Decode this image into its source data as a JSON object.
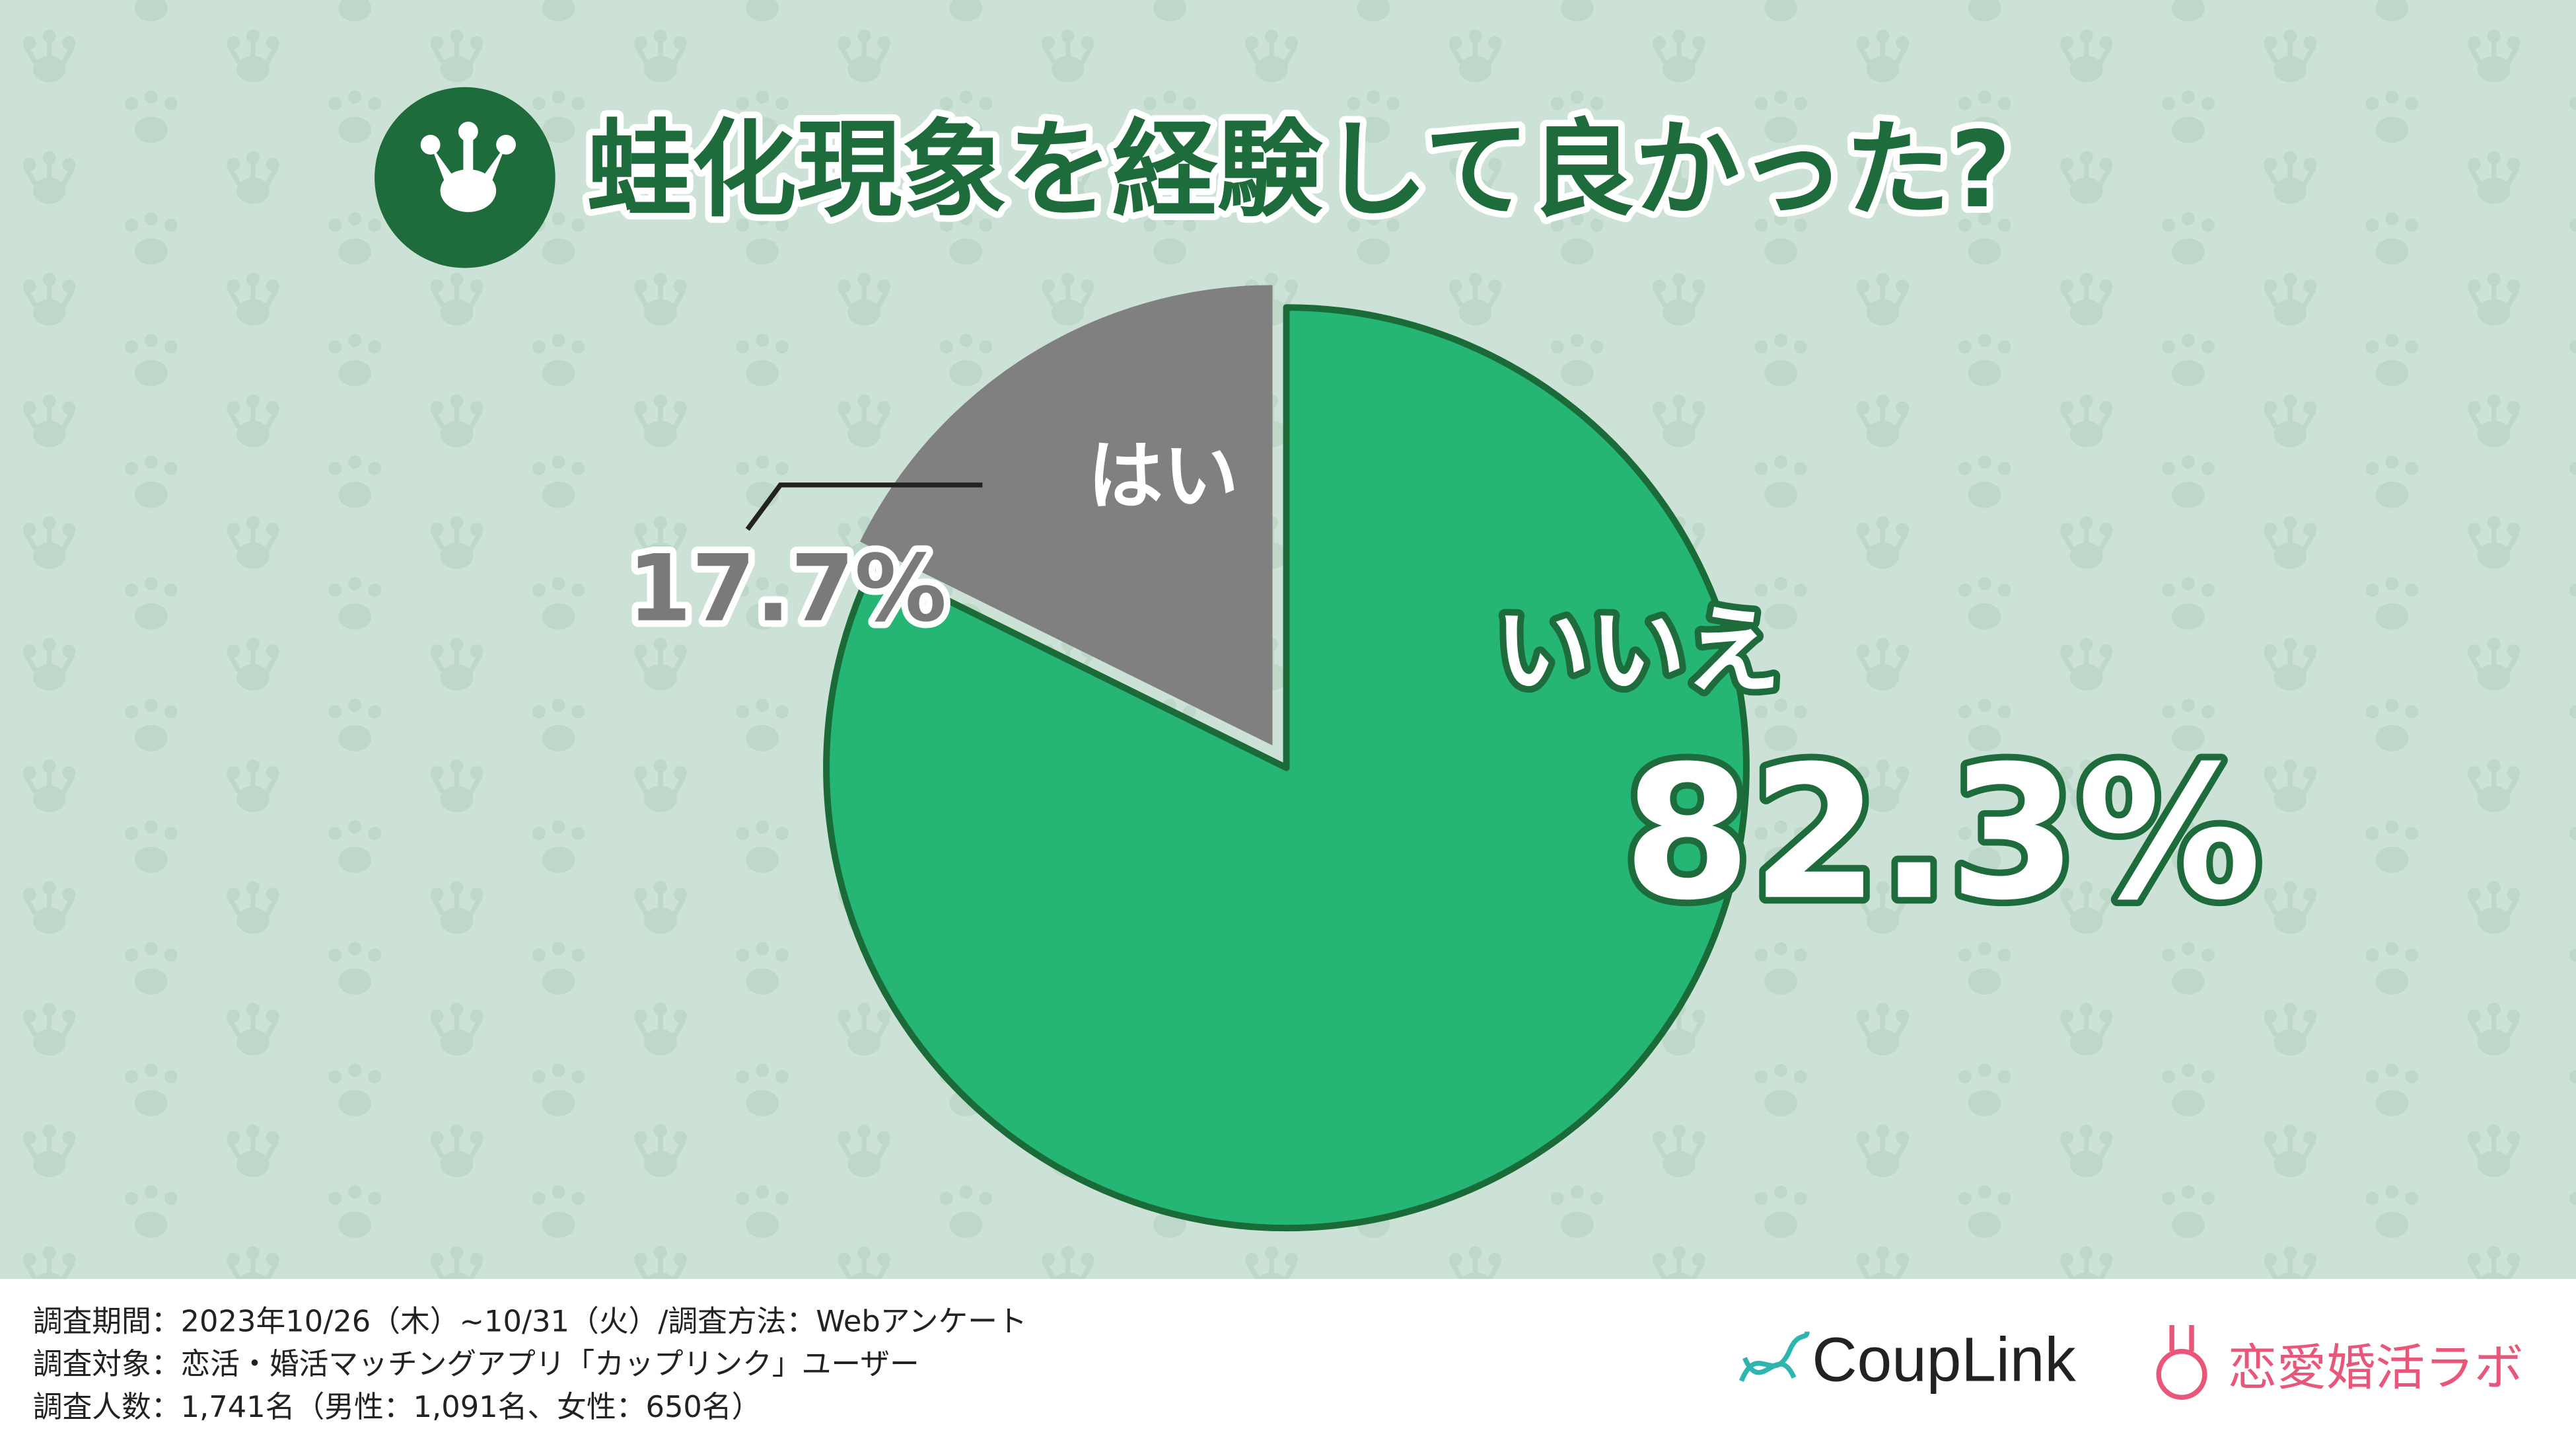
{
  "chart_data": {
    "type": "pie",
    "title": "蛙化現象を経験して良かった?",
    "categories": [
      "いいえ",
      "はい"
    ],
    "values": [
      82.3,
      17.7
    ],
    "value_labels": [
      "82.3%",
      "17.7%"
    ],
    "colors": [
      "#25b574",
      "#808080"
    ]
  },
  "footer": {
    "notes": [
      "調査期間：2023年10/26（木）~10/31（火）/調査方法：Webアンケート",
      "調査対象：恋活・婚活マッチングアプリ「カップリンク」ユーザー",
      "調査人数：1,741名（男性：1,091名、女性：650名）"
    ],
    "logos": [
      "CoupLink",
      "恋愛婚活ラボ"
    ]
  }
}
